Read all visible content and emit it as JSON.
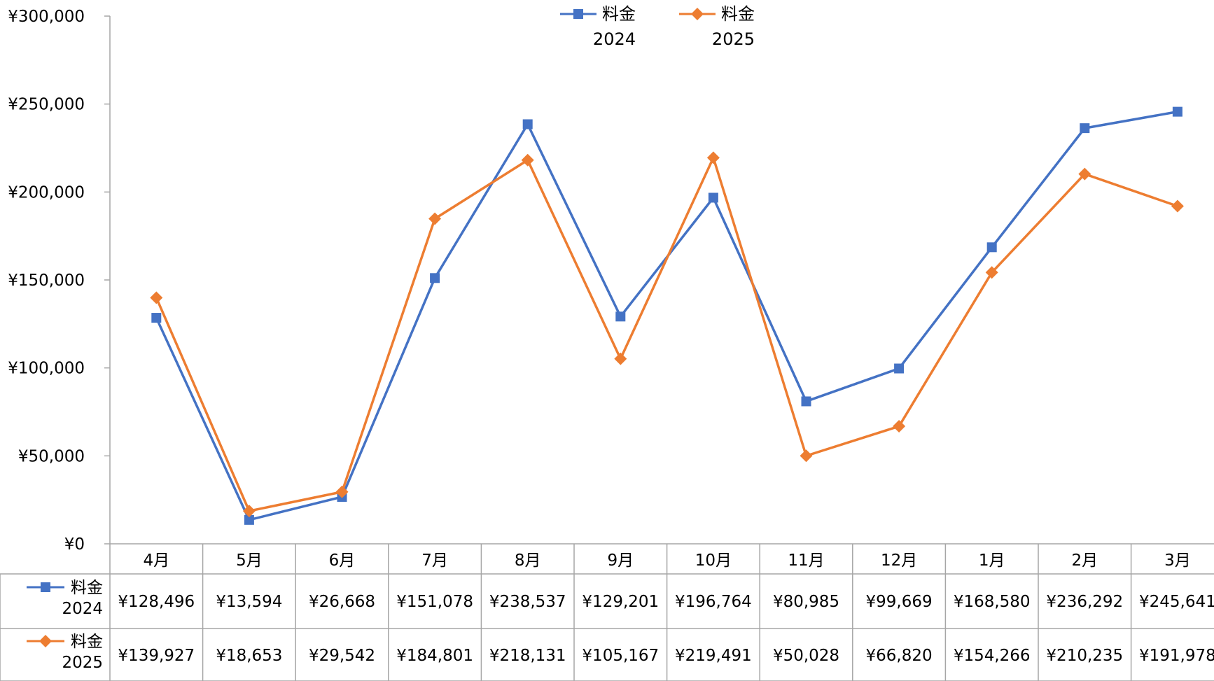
{
  "chart_data": {
    "type": "line",
    "categories": [
      "4月",
      "5月",
      "6月",
      "7月",
      "8月",
      "9月",
      "10月",
      "11月",
      "12月",
      "1月",
      "2月",
      "3月"
    ],
    "ylim": [
      0,
      300000
    ],
    "yticks": [
      0,
      50000,
      100000,
      150000,
      200000,
      250000,
      300000
    ],
    "ytick_labels": [
      "¥0",
      "¥50,000",
      "¥100,000",
      "¥150,000",
      "¥200,000",
      "¥250,000",
      "¥300,000"
    ],
    "grid": false,
    "legend_position": "top-center",
    "data_table": true,
    "series": [
      {
        "name_line1": "料金",
        "name_line2": "2024",
        "color": "#4472C4",
        "marker": "square",
        "values": [
          128496,
          13594,
          26668,
          151078,
          238537,
          129201,
          196764,
          80985,
          99669,
          168580,
          236292,
          245641
        ],
        "value_labels": [
          "¥128,496",
          "¥13,594",
          "¥26,668",
          "¥151,078",
          "¥238,537",
          "¥129,201",
          "¥196,764",
          "¥80,985",
          "¥99,669",
          "¥168,580",
          "¥236,292",
          "¥245,641"
        ]
      },
      {
        "name_line1": "料金",
        "name_line2": "2025",
        "color": "#ED7D31",
        "marker": "diamond",
        "values": [
          139927,
          18653,
          29542,
          184801,
          218131,
          105167,
          219491,
          50028,
          66820,
          154266,
          210235,
          191978
        ],
        "value_labels": [
          "¥139,927",
          "¥18,653",
          "¥29,542",
          "¥184,801",
          "¥218,131",
          "¥105,167",
          "¥219,491",
          "¥50,028",
          "¥66,820",
          "¥154,266",
          "¥210,235",
          "¥191,978"
        ]
      }
    ]
  }
}
